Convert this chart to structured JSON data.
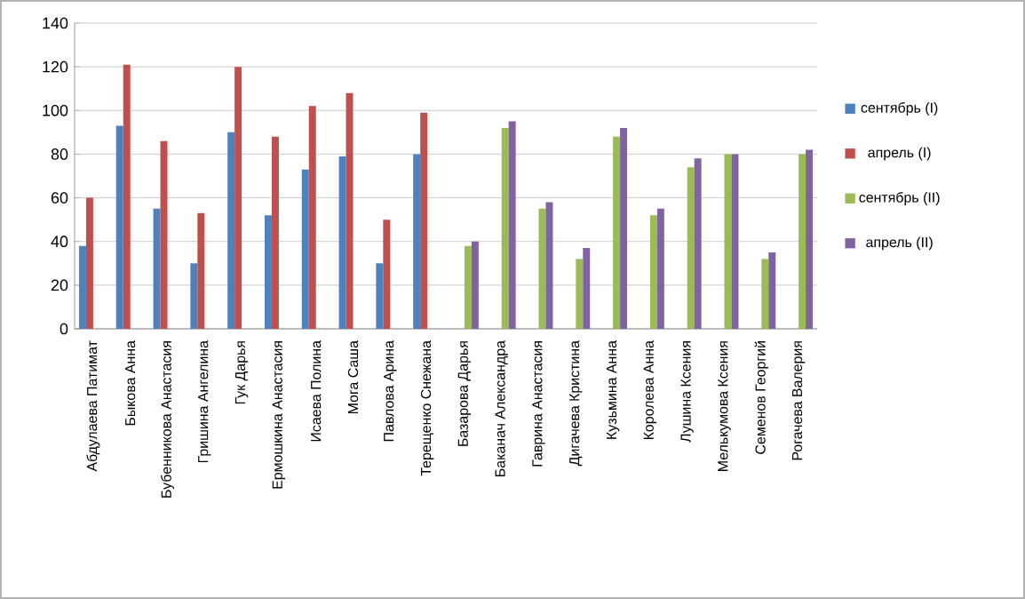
{
  "chart_data": {
    "type": "bar",
    "categories": [
      "Абдулаева Патимат",
      "Быкова Анна",
      "Бубенникова Анастасия",
      "Гришина Ангелина",
      "Гук Дарья",
      "Ермошкина Анастасия",
      "Исаева Полина",
      "Мога Саша",
      "Павлова Арина",
      "Терещенко  Снежана",
      "Базарова Дарья",
      "Баканач Александра",
      "Гаврина Анастасия",
      "Дигачева Кристина",
      "Кузьмина Анна",
      "Королева Анна",
      "Лушина Ксения",
      "Мелькумова Ксения",
      "Семенов Георгий",
      "Рогачева Валерия"
    ],
    "series": [
      {
        "name": "сентябрь (I)",
        "color": "#4f81bd",
        "values": [
          38,
          93,
          55,
          30,
          90,
          52,
          73,
          79,
          30,
          80,
          null,
          null,
          null,
          null,
          null,
          null,
          null,
          null,
          null,
          null
        ]
      },
      {
        "name": "апрель (I)",
        "color": "#c0504d",
        "values": [
          60,
          121,
          86,
          53,
          120,
          88,
          102,
          108,
          50,
          99,
          null,
          null,
          null,
          null,
          null,
          null,
          null,
          null,
          null,
          null
        ]
      },
      {
        "name": "сентябрь (II)",
        "color": "#9bbb59",
        "values": [
          null,
          null,
          null,
          null,
          null,
          null,
          null,
          null,
          null,
          null,
          38,
          92,
          55,
          32,
          88,
          52,
          74,
          80,
          32,
          80
        ]
      },
      {
        "name": "апрель (II)",
        "color": "#8064a2",
        "values": [
          null,
          null,
          null,
          null,
          null,
          null,
          null,
          null,
          null,
          null,
          40,
          95,
          58,
          37,
          92,
          55,
          78,
          80,
          35,
          82
        ]
      }
    ],
    "ylim": [
      0,
      140
    ],
    "yticks": [
      0,
      20,
      40,
      60,
      80,
      100,
      120,
      140
    ],
    "grid": "y",
    "legend": "right"
  }
}
